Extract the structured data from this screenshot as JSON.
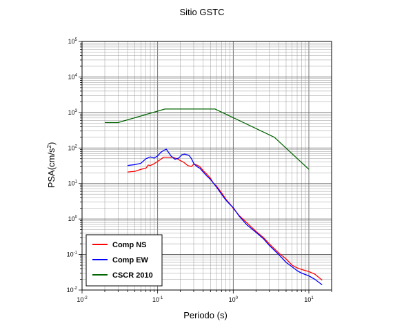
{
  "chart_data": {
    "type": "line",
    "title": "Sitio GSTC",
    "xlabel": "Periodo (s)",
    "ylabel_base": "PSA(cm/s",
    "ylabel_exp": "2",
    "ylabel_close": ")",
    "x_scale": "log",
    "y_scale": "log",
    "xlim": [
      0.01,
      20
    ],
    "ylim": [
      0.01,
      100000
    ],
    "grid": true,
    "legend_position": "bottom-left",
    "x_ticks": [
      {
        "base": "10",
        "exp": "-2",
        "value": 0.01
      },
      {
        "base": "10",
        "exp": "-1",
        "value": 0.1
      },
      {
        "base": "10",
        "exp": "0",
        "value": 1
      },
      {
        "base": "10",
        "exp": "1",
        "value": 10
      }
    ],
    "y_ticks": [
      {
        "base": "10",
        "exp": "-2",
        "value": 0.01
      },
      {
        "base": "10",
        "exp": "-1",
        "value": 0.1
      },
      {
        "base": "10",
        "exp": "0",
        "value": 1
      },
      {
        "base": "10",
        "exp": "1",
        "value": 10
      },
      {
        "base": "10",
        "exp": "2",
        "value": 100
      },
      {
        "base": "10",
        "exp": "3",
        "value": 1000
      },
      {
        "base": "10",
        "exp": "4",
        "value": 10000
      },
      {
        "base": "10",
        "exp": "5",
        "value": 100000
      }
    ],
    "series": [
      {
        "name": "Comp NS",
        "color": "#ff0000",
        "x": [
          0.04,
          0.05,
          0.06,
          0.07,
          0.075,
          0.08,
          0.09,
          0.1,
          0.11,
          0.12,
          0.14,
          0.16,
          0.18,
          0.2,
          0.22,
          0.25,
          0.28,
          0.3,
          0.33,
          0.36,
          0.4,
          0.45,
          0.5,
          0.55,
          0.6,
          0.7,
          0.8,
          0.9,
          1.0,
          1.2,
          1.5,
          2.0,
          2.5,
          3.0,
          4.0,
          5.0,
          6.0,
          7.0,
          8.0,
          10.0,
          12.0,
          15.0
        ],
        "y": [
          21,
          22,
          25,
          27,
          33,
          32,
          36,
          42,
          48,
          55,
          55,
          54,
          50,
          44,
          40,
          32,
          30,
          35,
          33,
          30,
          23,
          18,
          14,
          10,
          8.5,
          5.5,
          3.6,
          2.7,
          2.0,
          1.25,
          0.8,
          0.45,
          0.3,
          0.2,
          0.11,
          0.075,
          0.05,
          0.042,
          0.038,
          0.033,
          0.028,
          0.019
        ]
      },
      {
        "name": "Comp EW",
        "color": "#0000ff",
        "x": [
          0.04,
          0.05,
          0.06,
          0.07,
          0.08,
          0.09,
          0.1,
          0.11,
          0.12,
          0.13,
          0.15,
          0.17,
          0.19,
          0.21,
          0.23,
          0.26,
          0.28,
          0.3,
          0.33,
          0.36,
          0.4,
          0.45,
          0.5,
          0.55,
          0.6,
          0.7,
          0.8,
          0.9,
          1.0,
          1.2,
          1.5,
          2.0,
          2.5,
          3.0,
          4.0,
          5.0,
          6.0,
          7.0,
          8.0,
          10.0,
          12.0,
          15.0
        ],
        "y": [
          32,
          34,
          37,
          50,
          56,
          52,
          60,
          75,
          85,
          92,
          60,
          48,
          52,
          65,
          67,
          62,
          50,
          37,
          30,
          27,
          21,
          16,
          13,
          10,
          8.0,
          5.0,
          3.4,
          2.6,
          2.1,
          1.2,
          0.7,
          0.42,
          0.28,
          0.18,
          0.1,
          0.06,
          0.045,
          0.035,
          0.03,
          0.025,
          0.02,
          0.014
        ]
      },
      {
        "name": "CSCR 2010",
        "color": "#006400",
        "x": [
          0.02,
          0.03,
          0.125,
          0.575,
          3.5,
          10.0
        ],
        "y": [
          520,
          520,
          1250,
          1250,
          200,
          25
        ]
      }
    ]
  }
}
